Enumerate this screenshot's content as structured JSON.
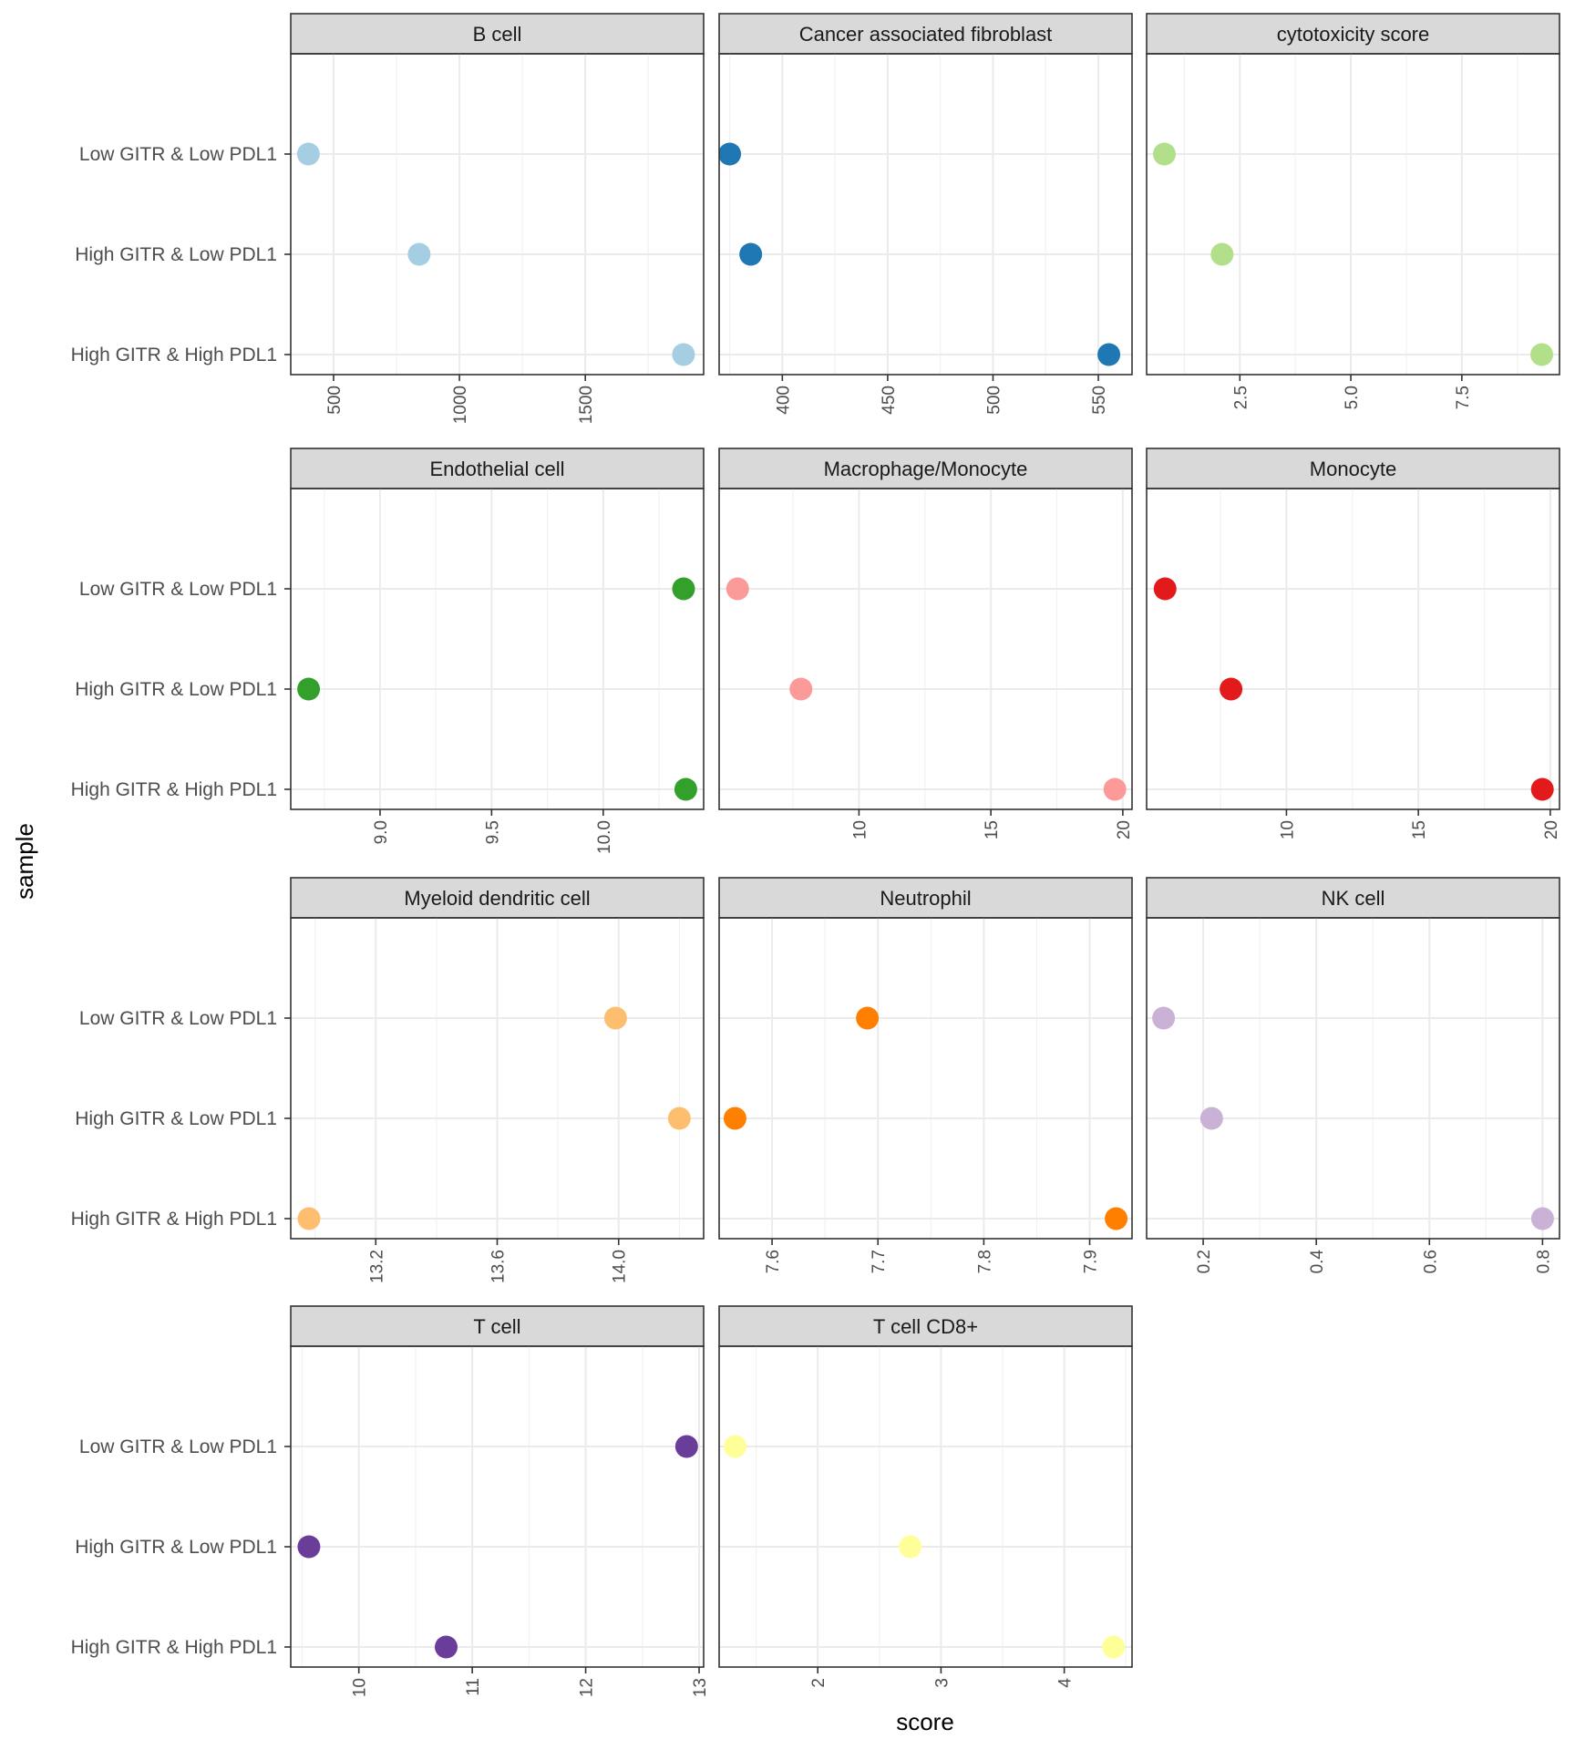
{
  "chart_data": {
    "type": "scatter",
    "xlabel": "score",
    "ylabel": "sample",
    "categories": [
      "Low GITR & Low PDL1",
      "High GITR & Low PDL1",
      "High GITR & High PDL1"
    ],
    "panels": [
      {
        "title": "B cell",
        "color": "#a6cee3",
        "xlim": [
          330,
          1970
        ],
        "ticks": [
          500,
          1000,
          1500
        ],
        "tick_labels": [
          "500",
          "1000",
          "1500"
        ],
        "values": [
          400,
          840,
          1890
        ]
      },
      {
        "title": "Cancer associated fibroblast",
        "color": "#1f78b4",
        "xlim": [
          370,
          566
        ],
        "ticks": [
          400,
          450,
          500,
          550
        ],
        "tick_labels": [
          "400",
          "450",
          "500",
          "550"
        ],
        "values": [
          375,
          385,
          555
        ]
      },
      {
        "title": "cytotoxicity score",
        "color": "#b2df8a",
        "xlim": [
          0.4,
          9.7
        ],
        "ticks": [
          2.5,
          5.0,
          7.5
        ],
        "tick_labels": [
          "2.5",
          "5.0",
          "7.5"
        ],
        "values": [
          0.8,
          2.1,
          9.3
        ]
      },
      {
        "title": "Endothelial cell",
        "color": "#33a02c",
        "xlim": [
          8.6,
          10.45
        ],
        "ticks": [
          9.0,
          9.5,
          10.0
        ],
        "tick_labels": [
          "9.0",
          "9.5",
          "10.0"
        ],
        "values": [
          10.36,
          8.68,
          10.37
        ]
      },
      {
        "title": "Macrophage/Monocyte",
        "color": "#fb9a99",
        "xlim": [
          4.7,
          20.35
        ],
        "ticks": [
          10,
          15,
          20
        ],
        "tick_labels": [
          "10",
          "15",
          "20"
        ],
        "values": [
          5.4,
          7.8,
          19.7
        ]
      },
      {
        "title": "Monocyte",
        "color": "#e31a1c",
        "xlim": [
          4.7,
          20.35
        ],
        "ticks": [
          10,
          15,
          20
        ],
        "tick_labels": [
          "10",
          "15",
          "20"
        ],
        "values": [
          5.4,
          7.9,
          19.7
        ]
      },
      {
        "title": "Myeloid dendritic cell",
        "color": "#fdbf6f",
        "xlim": [
          12.92,
          14.28
        ],
        "ticks": [
          13.2,
          13.6,
          14.0
        ],
        "tick_labels": [
          "13.2",
          "13.6",
          "14.0"
        ],
        "values": [
          13.99,
          14.2,
          12.98
        ]
      },
      {
        "title": "Neutrophil",
        "color": "#ff7f00",
        "xlim": [
          7.55,
          7.94
        ],
        "ticks": [
          7.6,
          7.7,
          7.8,
          7.9
        ],
        "tick_labels": [
          "7.6",
          "7.7",
          "7.8",
          "7.9"
        ],
        "values": [
          7.69,
          7.565,
          7.925
        ]
      },
      {
        "title": "NK cell",
        "color": "#cab2d6",
        "xlim": [
          0.1,
          0.83
        ],
        "ticks": [
          0.2,
          0.4,
          0.6,
          0.8
        ],
        "tick_labels": [
          "0.2",
          "0.4",
          "0.6",
          "0.8"
        ],
        "values": [
          0.13,
          0.215,
          0.8
        ]
      },
      {
        "title": "T cell",
        "color": "#6a3d9a",
        "xlim": [
          9.4,
          13.04
        ],
        "ticks": [
          10,
          11,
          12,
          13
        ],
        "tick_labels": [
          "10",
          "11",
          "12",
          "13"
        ],
        "values": [
          12.89,
          9.56,
          10.77
        ]
      },
      {
        "title": "T cell CD8+",
        "color": "#ffff99",
        "xlim": [
          1.2,
          4.55
        ],
        "ticks": [
          2,
          3,
          4
        ],
        "tick_labels": [
          "2",
          "3",
          "4"
        ],
        "values": [
          1.33,
          2.75,
          4.4
        ]
      }
    ]
  }
}
